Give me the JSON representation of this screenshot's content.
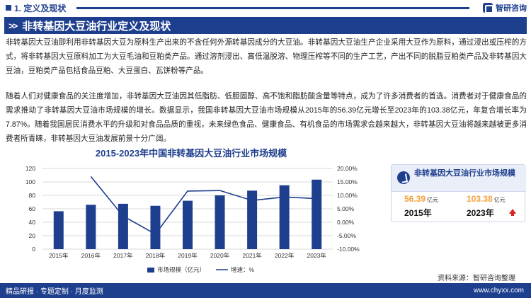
{
  "header": {
    "section": "1. 定义及现状",
    "brand": "智研咨询"
  },
  "banner": {
    "chevrons": ">>",
    "title": "非转基因大豆油行业定义及现状"
  },
  "paragraphs": {
    "p1": "非转基因大豆油即利用非转基因大豆为原料生产出来的不含任何外源转基因成分的大豆油。非转基因大豆油生产企业采用大豆作为原料，通过浸出或压榨的方式，将非转基因大豆原料加工为大豆毛油和豆粕类产品。通过溶剂浸出、高低温脱溶、物理压榨等不同的生产工艺，产出不同的脱脂豆粕类产品及非转基因大豆油，豆粕类产品包括食品豆粕、大豆蛋白、瓦饼粉等产品。",
    "p2": "随着人们对健康食品的关注度增加，非转基因大豆油因其低脂肪、低胆固醇、高不饱和脂肪酸含量等特点，成为了许多消费者的首选。消费者对于健康食品的需求推动了非转基因大豆油市场规模的增长。数据显示，我国非转基因大豆油市场规模从2015年的56.39亿元增长至2023年的103.38亿元，年复合增长率为7.87%。随着我国居民消费水平的升级和对食品品质的重视，未来绿色食品、健康食品、有机食品的市场需求会越来越大，非转基因大豆油将越来越被更多消费者所青睐，非转基因大豆油发展前景十分广阔。"
  },
  "chart_data": {
    "type": "bar",
    "title": "2015-2023年中国非转基因大豆油行业市场规模",
    "categories": [
      "2015年",
      "2016年",
      "2017年",
      "2018年",
      "2019年",
      "2020年",
      "2021年",
      "2022年",
      "2023年"
    ],
    "series": [
      {
        "name": "市场规模（亿元）",
        "type": "bar",
        "axis": "left",
        "values": [
          56.39,
          66,
          67.5,
          64.5,
          72,
          80,
          87,
          95,
          103.38
        ],
        "color": "#1e3f8e"
      },
      {
        "name": "增速：%",
        "type": "line",
        "axis": "right",
        "values": [
          null,
          17.0,
          2.3,
          -4.4,
          11.6,
          11.8,
          8.1,
          9.4,
          8.8
        ],
        "color": "#1e3f8e"
      }
    ],
    "y_left": {
      "min": 0,
      "max": 120,
      "ticks": [
        0,
        20,
        40,
        60,
        80,
        100,
        120
      ]
    },
    "y_right": {
      "min": -10,
      "max": 20,
      "ticks": [
        "-10.00%",
        "-5.00%",
        "0.00%",
        "5.00%",
        "10.00%",
        "15.00%",
        "20.00%"
      ]
    },
    "grid": true,
    "legend": "bottom"
  },
  "info_card": {
    "title": "非转基因大豆油行业市场规模",
    "start_value": "56.39",
    "end_value": "103.38",
    "unit": "亿元",
    "start_year": "2015年",
    "end_year": "2023年",
    "trend_icon": "up-arrow-icon"
  },
  "source": "资料来源：智研咨询整理",
  "footer": {
    "left": "精品研报 · 专题定制 · 月度监测",
    "right": "www.chyxx.com"
  },
  "colors": {
    "brand_blue": "#1e3f8e",
    "accent_orange": "#f6a13c",
    "up_red": "#d7261e"
  }
}
